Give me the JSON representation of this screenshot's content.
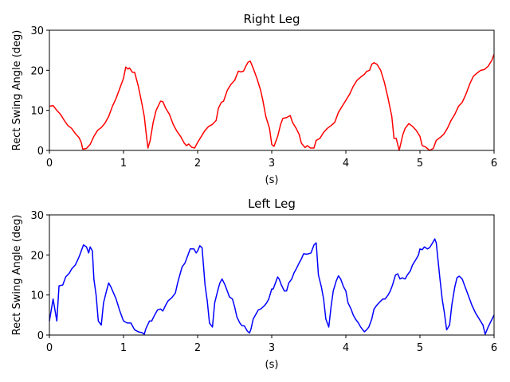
{
  "chart_data": [
    {
      "type": "line",
      "title": "Right Leg",
      "xlabel": "(s)",
      "ylabel": "Rect Swing Angle (deg)",
      "xlim": [
        0,
        6
      ],
      "xticks": [
        0,
        1,
        2,
        3,
        4,
        5,
        6
      ],
      "ylim": [
        0,
        30
      ],
      "yticks": [
        0,
        10,
        20,
        30
      ],
      "x": [
        0,
        0.05,
        0.1,
        0.15,
        0.2,
        0.25,
        0.3,
        0.35,
        0.4,
        0.43,
        0.45,
        0.5,
        0.55,
        0.6,
        0.65,
        0.7,
        0.75,
        0.8,
        0.85,
        0.9,
        0.95,
        1.0,
        1.03,
        1.06,
        1.08,
        1.12,
        1.15,
        1.2,
        1.25,
        1.28,
        1.31,
        1.33,
        1.36,
        1.4,
        1.44,
        1.5,
        1.53,
        1.57,
        1.62,
        1.67,
        1.72,
        1.77,
        1.82,
        1.85,
        1.88,
        1.92,
        1.96,
        2.0,
        2.05,
        2.1,
        2.15,
        2.2,
        2.25,
        2.28,
        2.32,
        2.35,
        2.4,
        2.45,
        2.5,
        2.55,
        2.58,
        2.62,
        2.65,
        2.68,
        2.71,
        2.75,
        2.8,
        2.85,
        2.88,
        2.92,
        2.97,
        3.0,
        3.03,
        3.08,
        3.12,
        3.15,
        3.2,
        3.25,
        3.28,
        3.33,
        3.37,
        3.4,
        3.45,
        3.48,
        3.52,
        3.57,
        3.6,
        3.65,
        3.7,
        3.75,
        3.8,
        3.85,
        3.9,
        3.95,
        4.0,
        4.05,
        4.1,
        4.15,
        4.2,
        4.25,
        4.28,
        4.32,
        4.35,
        4.38,
        4.42,
        4.47,
        4.52,
        4.57,
        4.62,
        4.65,
        4.68,
        4.72,
        4.77,
        4.8,
        4.85,
        4.9,
        4.95,
        5.0,
        5.03,
        5.08,
        5.13,
        5.18,
        5.22,
        5.27,
        5.32,
        5.37,
        5.42,
        5.47,
        5.52,
        5.57,
        5.62,
        5.67,
        5.72,
        5.77,
        5.82,
        5.87,
        5.92,
        5.97,
        6.0
      ],
      "series": [
        {
          "color": "#ff0000",
          "values": [
            11,
            11.2,
            10,
            9,
            7.5,
            6.2,
            5.5,
            4.2,
            3.2,
            2,
            0.3,
            0.5,
            1.5,
            3.5,
            5,
            5.7,
            6.8,
            8.5,
            11,
            13,
            15.5,
            18,
            20.8,
            20.3,
            20.6,
            19.5,
            19.5,
            16,
            11.5,
            8.5,
            3.5,
            0.6,
            2.5,
            7,
            10,
            12.3,
            12.2,
            10.5,
            9,
            6.5,
            4.8,
            3.5,
            1.8,
            1.2,
            1.6,
            0.8,
            0.6,
            2,
            3.5,
            5,
            6,
            6.5,
            7.5,
            10.5,
            12,
            12.3,
            15,
            16.5,
            17.5,
            19.8,
            19.6,
            19.8,
            21,
            22,
            22.3,
            20.5,
            18,
            15,
            12.5,
            8.5,
            5.5,
            1.5,
            1,
            3.5,
            6.5,
            8,
            8.2,
            8.7,
            7,
            5.5,
            4,
            1.8,
            0.7,
            1.2,
            0.6,
            0.6,
            2.5,
            3,
            4.5,
            5.5,
            6.2,
            7,
            9.5,
            11,
            12.5,
            14,
            16,
            17.5,
            18.3,
            19,
            19.7,
            20,
            21.5,
            21.9,
            21.5,
            20,
            17,
            13,
            8.5,
            3,
            3,
            0,
            4,
            5.5,
            6.7,
            6,
            5,
            3.5,
            1.2,
            0.8,
            0,
            0.5,
            2.5,
            3.2,
            4,
            5.5,
            7.5,
            9,
            11,
            12,
            14,
            16.5,
            18.5,
            19.3,
            20,
            20.2,
            21,
            22.5,
            24
          ]
        }
      ]
    },
    {
      "type": "line",
      "title": "Left Leg",
      "xlabel": "(s)",
      "ylabel": "Rect Swing Angle (deg)",
      "xlim": [
        0,
        6
      ],
      "xticks": [
        0,
        1,
        2,
        3,
        4,
        5,
        6
      ],
      "ylim": [
        0,
        30
      ],
      "yticks": [
        0,
        10,
        20,
        30
      ],
      "x": [
        0,
        0.05,
        0.1,
        0.13,
        0.18,
        0.22,
        0.27,
        0.3,
        0.35,
        0.4,
        0.43,
        0.46,
        0.5,
        0.53,
        0.55,
        0.58,
        0.6,
        0.63,
        0.66,
        0.7,
        0.73,
        0.77,
        0.8,
        0.83,
        0.9,
        0.95,
        1.0,
        1.05,
        1.1,
        1.15,
        1.2,
        1.25,
        1.28,
        1.3,
        1.35,
        1.38,
        1.42,
        1.46,
        1.5,
        1.53,
        1.57,
        1.6,
        1.65,
        1.7,
        1.73,
        1.76,
        1.79,
        1.83,
        1.87,
        1.9,
        1.95,
        1.98,
        2.0,
        2.03,
        2.06,
        2.1,
        2.13,
        2.16,
        2.2,
        2.23,
        2.27,
        2.3,
        2.33,
        2.37,
        2.4,
        2.43,
        2.47,
        2.5,
        2.53,
        2.57,
        2.6,
        2.63,
        2.67,
        2.7,
        2.72,
        2.75,
        2.78,
        2.82,
        2.85,
        2.9,
        2.93,
        2.96,
        3.0,
        3.02,
        3.05,
        3.08,
        3.1,
        3.13,
        3.17,
        3.2,
        3.23,
        3.27,
        3.3,
        3.33,
        3.37,
        3.4,
        3.43,
        3.47,
        3.5,
        3.53,
        3.57,
        3.6,
        3.63,
        3.67,
        3.7,
        3.73,
        3.77,
        3.8,
        3.83,
        3.87,
        3.9,
        3.93,
        3.97,
        4.0,
        4.03,
        4.07,
        4.1,
        4.13,
        4.17,
        4.2,
        4.25,
        4.28,
        4.31,
        4.35,
        4.38,
        4.42,
        4.46,
        4.5,
        4.53,
        4.57,
        4.6,
        4.63,
        4.67,
        4.7,
        4.73,
        4.76,
        4.8,
        4.83,
        4.87,
        4.9,
        4.95,
        4.98,
        5.0,
        5.03,
        5.06,
        5.1,
        5.13,
        5.17,
        5.2,
        5.22,
        5.27,
        5.3,
        5.33,
        5.36,
        5.4,
        5.43,
        5.47,
        5.5,
        5.53,
        5.57,
        5.6,
        5.65,
        5.7,
        5.75,
        5.8,
        5.85,
        5.88,
        5.92,
        5.96,
        6.0
      ],
      "series": [
        {
          "color": "#0000ff",
          "values": [
            3.5,
            9,
            3.5,
            12.3,
            12.5,
            14.5,
            15.5,
            16.5,
            17.5,
            19.5,
            21,
            22.5,
            22,
            20.5,
            22,
            21,
            14,
            10,
            3.5,
            2.5,
            8,
            11,
            13,
            12,
            9,
            6,
            3.5,
            3,
            3,
            1.3,
            0.8,
            0.6,
            0.2,
            1.5,
            3.5,
            3.5,
            5,
            6.3,
            6.5,
            6,
            7.5,
            8.5,
            9.3,
            10.5,
            13,
            15,
            17,
            18,
            20,
            21.5,
            21.5,
            20.5,
            21,
            22.3,
            21.8,
            12.5,
            8.5,
            3,
            2,
            8,
            11,
            13,
            14,
            12.5,
            11,
            9.5,
            9,
            7,
            4.5,
            3,
            2.3,
            2.3,
            1,
            0.5,
            1.5,
            4,
            5,
            6.3,
            6.5,
            7.3,
            8,
            9,
            11.5,
            11.5,
            13,
            14.5,
            14,
            12.5,
            11,
            11,
            13,
            14,
            15.5,
            16.5,
            18,
            19,
            20.3,
            20.2,
            20.3,
            20.5,
            22.5,
            23,
            15,
            12,
            9,
            4,
            2,
            7,
            11,
            13.5,
            14.8,
            14,
            12,
            11,
            8,
            6.5,
            5,
            4,
            3,
            2,
            0.8,
            1.3,
            2,
            4,
            6.5,
            7.5,
            8.3,
            9,
            9,
            10,
            11,
            12.5,
            15,
            15.3,
            14,
            14.3,
            14,
            15,
            16,
            17.5,
            19,
            20,
            21.5,
            21.3,
            22,
            21.5,
            21.8,
            23,
            24,
            23,
            14,
            9,
            5.5,
            1.3,
            2.5,
            7.5,
            12,
            14.3,
            14.7,
            14,
            12.5,
            10,
            7.5,
            5.5,
            4,
            2.5,
            0.2,
            2,
            3.5,
            5
          ]
        }
      ]
    }
  ]
}
